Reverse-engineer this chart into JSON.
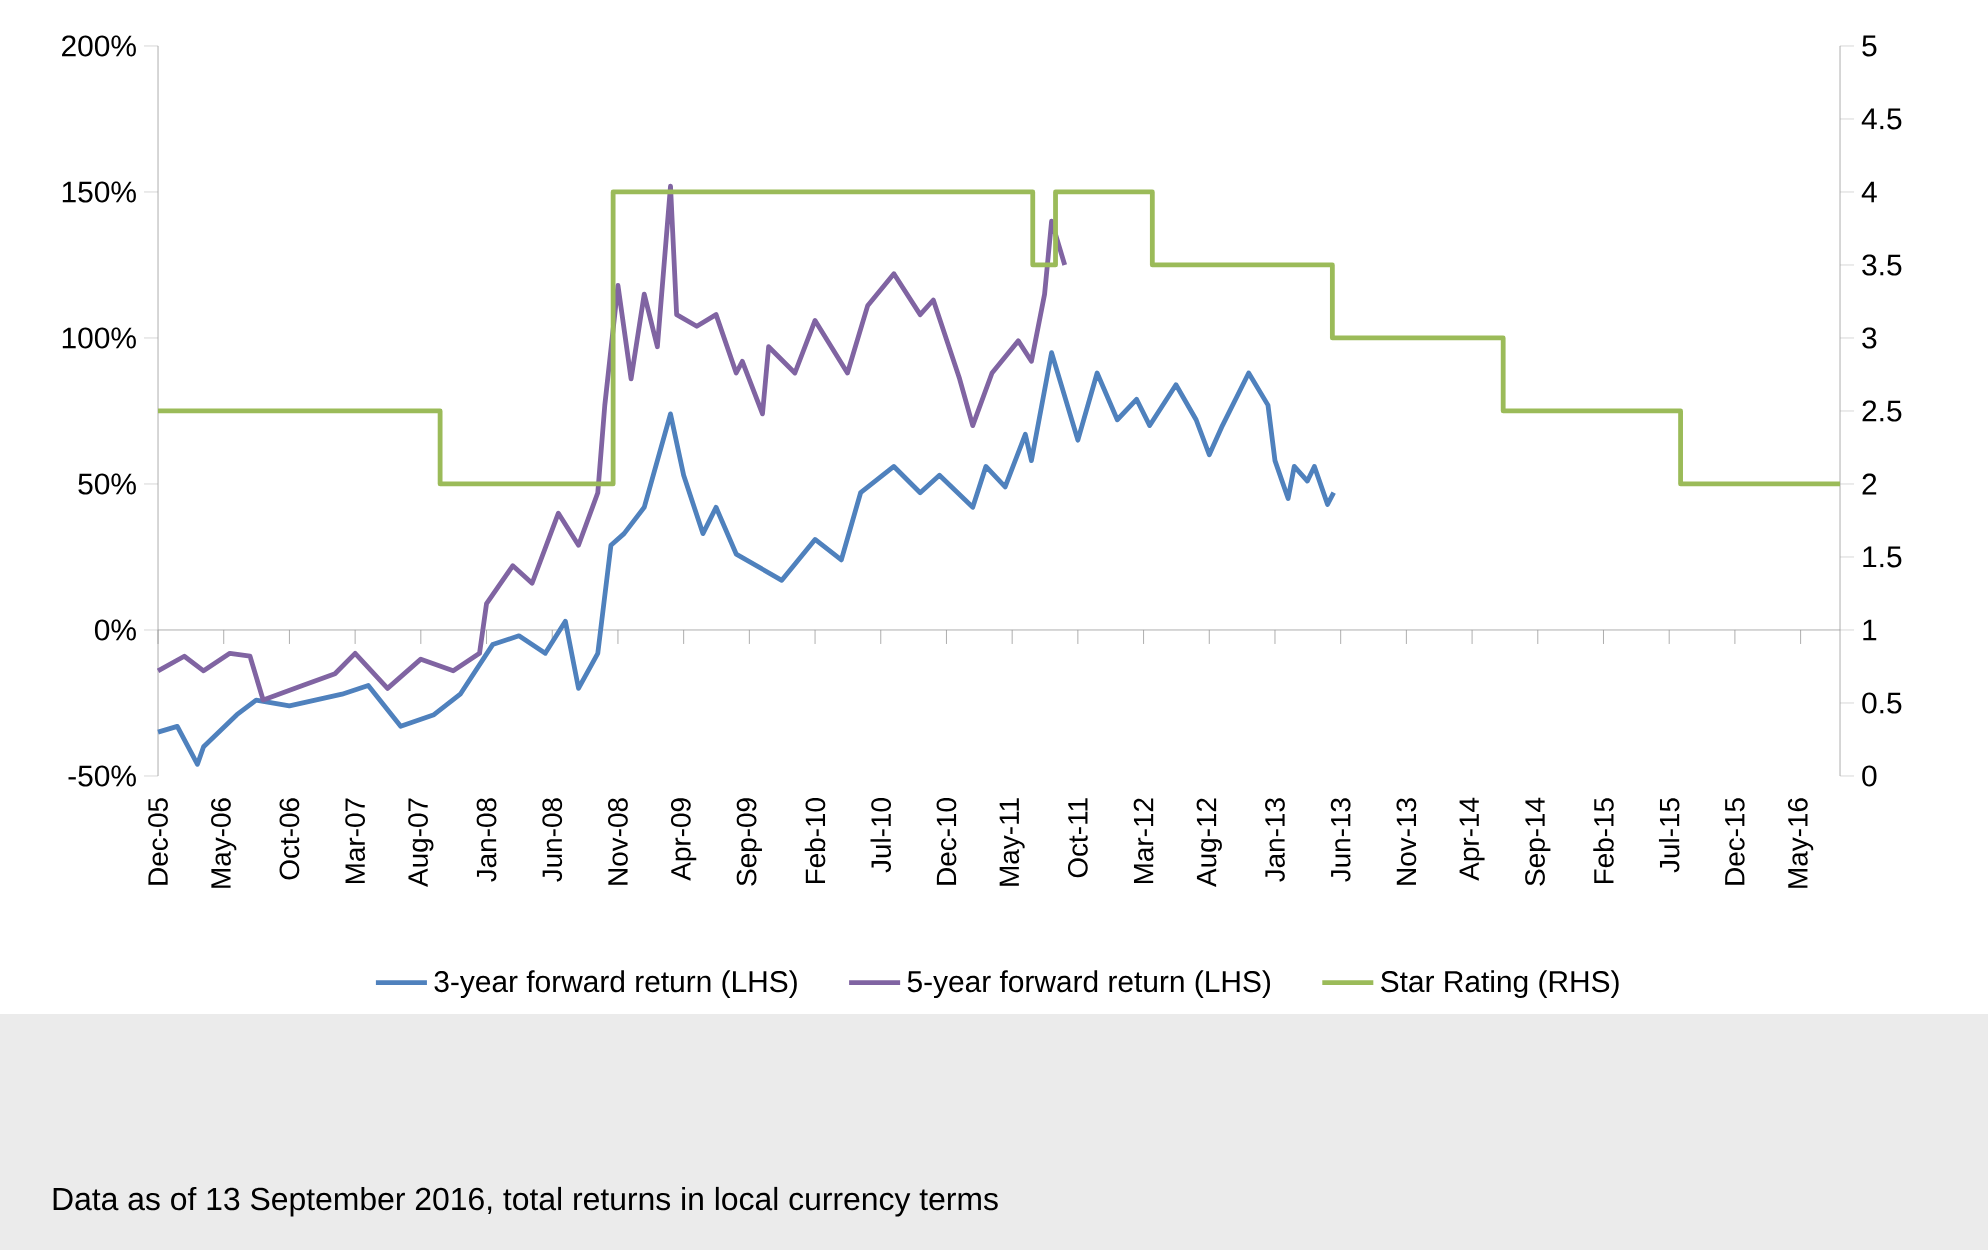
{
  "chart_data": {
    "type": "line",
    "xlim": [
      "2005-12",
      "2016-08"
    ],
    "xticks": [
      {
        "value": "2005-12",
        "label": "Dec-05"
      },
      {
        "value": "2006-05",
        "label": "May-06"
      },
      {
        "value": "2006-10",
        "label": "Oct-06"
      },
      {
        "value": "2007-03",
        "label": "Mar-07"
      },
      {
        "value": "2007-08",
        "label": "Aug-07"
      },
      {
        "value": "2008-01",
        "label": "Jan-08"
      },
      {
        "value": "2008-06",
        "label": "Jun-08"
      },
      {
        "value": "2008-11",
        "label": "Nov-08"
      },
      {
        "value": "2009-04",
        "label": "Apr-09"
      },
      {
        "value": "2009-09",
        "label": "Sep-09"
      },
      {
        "value": "2010-02",
        "label": "Feb-10"
      },
      {
        "value": "2010-07",
        "label": "Jul-10"
      },
      {
        "value": "2010-12",
        "label": "Dec-10"
      },
      {
        "value": "2011-05",
        "label": "May-11"
      },
      {
        "value": "2011-10",
        "label": "Oct-11"
      },
      {
        "value": "2012-03",
        "label": "Mar-12"
      },
      {
        "value": "2012-08",
        "label": "Aug-12"
      },
      {
        "value": "2013-01",
        "label": "Jan-13"
      },
      {
        "value": "2013-06",
        "label": "Jun-13"
      },
      {
        "value": "2013-11",
        "label": "Nov-13"
      },
      {
        "value": "2014-04",
        "label": "Apr-14"
      },
      {
        "value": "2014-09",
        "label": "Sep-14"
      },
      {
        "value": "2015-02",
        "label": "Feb-15"
      },
      {
        "value": "2015-07",
        "label": "Jul-15"
      },
      {
        "value": "2015-12",
        "label": "Dec-15"
      },
      {
        "value": "2016-05",
        "label": "May-16"
      }
    ],
    "ylim": [
      -50,
      200
    ],
    "yticks": [
      {
        "value": -50,
        "label": "-50%"
      },
      {
        "value": 0,
        "label": "0%"
      },
      {
        "value": 50,
        "label": "50%"
      },
      {
        "value": 100,
        "label": "100%"
      },
      {
        "value": 150,
        "label": "150%"
      },
      {
        "value": 200,
        "label": "200%"
      }
    ],
    "y2lim": [
      0,
      5
    ],
    "y2ticks": [
      0,
      0.5,
      1,
      1.5,
      2,
      2.5,
      3,
      3.5,
      4,
      4.5,
      5
    ],
    "legend": "bottom",
    "series": [
      {
        "name": "3-year forward return (LHS)",
        "color": "#4f81bd",
        "x": [
          "2005-12-01",
          "2006-01-15",
          "2006-03-01",
          "2006-03-15",
          "2006-06-01",
          "2006-07-15",
          "2006-10-01",
          "2007-02-01",
          "2007-04-01",
          "2007-06-15",
          "2007-09-01",
          "2007-11-01",
          "2008-01-15",
          "2008-03-15",
          "2008-05-15",
          "2008-07-01",
          "2008-08-01",
          "2008-09-15",
          "2008-10-15",
          "2008-11-15",
          "2009-01-01",
          "2009-03-01",
          "2009-04-01",
          "2009-05-15",
          "2009-06-15",
          "2009-08-01",
          "2009-11-15",
          "2010-02-01",
          "2010-04-01",
          "2010-05-15",
          "2010-08-01",
          "2010-10-01",
          "2010-11-15",
          "2011-02-01",
          "2011-03-01",
          "2011-04-15",
          "2011-06-01",
          "2011-06-15",
          "2011-08-01",
          "2011-10-01",
          "2011-11-15",
          "2012-01-01",
          "2012-02-15",
          "2012-03-15",
          "2012-05-15",
          "2012-07-01",
          "2012-08-01",
          "2012-09-01",
          "2012-11-01",
          "2012-12-15",
          "2013-01-01",
          "2013-02-01",
          "2013-02-15",
          "2013-03-15",
          "2013-04-01",
          "2013-05-01",
          "2013-05-15"
        ],
        "values": [
          -35,
          -33,
          -46,
          -40,
          -29,
          -24,
          -26,
          -22,
          -19,
          -33,
          -29,
          -22,
          -5,
          -2,
          -8,
          3,
          -20,
          -8,
          29,
          33,
          42,
          74,
          53,
          33,
          42,
          26,
          17,
          31,
          24,
          47,
          56,
          47,
          53,
          42,
          56,
          49,
          67,
          58,
          95,
          65,
          88,
          72,
          79,
          70,
          84,
          72,
          60,
          70,
          88,
          77,
          58,
          45,
          56,
          51,
          56,
          43,
          47
        ]
      },
      {
        "name": "5-year forward return (LHS)",
        "color": "#8064a2",
        "x": [
          "2005-12-01",
          "2006-02-01",
          "2006-03-15",
          "2006-05-15",
          "2006-07-01",
          "2006-08-01",
          "2006-11-01",
          "2007-01-15",
          "2007-03-01",
          "2007-05-15",
          "2007-08-01",
          "2007-10-15",
          "2007-12-15",
          "2008-01-01",
          "2008-03-01",
          "2008-04-15",
          "2008-06-15",
          "2008-08-01",
          "2008-09-15",
          "2008-10-01",
          "2008-11-01",
          "2008-12-01",
          "2009-01-01",
          "2009-02-01",
          "2009-03-01",
          "2009-03-15",
          "2009-05-01",
          "2009-06-15",
          "2009-08-01",
          "2009-08-15",
          "2009-10-01",
          "2009-10-15",
          "2009-12-15",
          "2010-02-01",
          "2010-04-15",
          "2010-06-01",
          "2010-08-01",
          "2010-10-01",
          "2010-11-01",
          "2011-01-01",
          "2011-02-01",
          "2011-03-15",
          "2011-05-15",
          "2011-06-15",
          "2011-07-15",
          "2011-08-01",
          "2011-09-01"
        ],
        "values": [
          -14,
          -9,
          -14,
          -8,
          -9,
          -24,
          -19,
          -15,
          -8,
          -20,
          -10,
          -14,
          -8,
          9,
          22,
          16,
          40,
          29,
          47,
          77,
          118,
          86,
          115,
          97,
          152,
          108,
          104,
          108,
          88,
          92,
          74,
          97,
          88,
          106,
          88,
          111,
          122,
          108,
          113,
          86,
          70,
          88,
          99,
          92,
          115,
          140,
          125
        ]
      },
      {
        "name": "Star Rating (RHS)",
        "type": "step",
        "axis": "y2",
        "color": "#9bbb59",
        "x": [
          "2005-12-01",
          "2007-09-15",
          "2008-10-20",
          "2011-06-18",
          "2011-08-10",
          "2012-03-21",
          "2013-05-12",
          "2014-06-12",
          "2015-07-27",
          "2016-08-01"
        ],
        "values": [
          2.5,
          2,
          4,
          3.5,
          4,
          3.5,
          3,
          2.5,
          2,
          2
        ]
      }
    ],
    "annotations": [
      "Data as of 13 September 2016, total returns in local currency terms"
    ]
  }
}
